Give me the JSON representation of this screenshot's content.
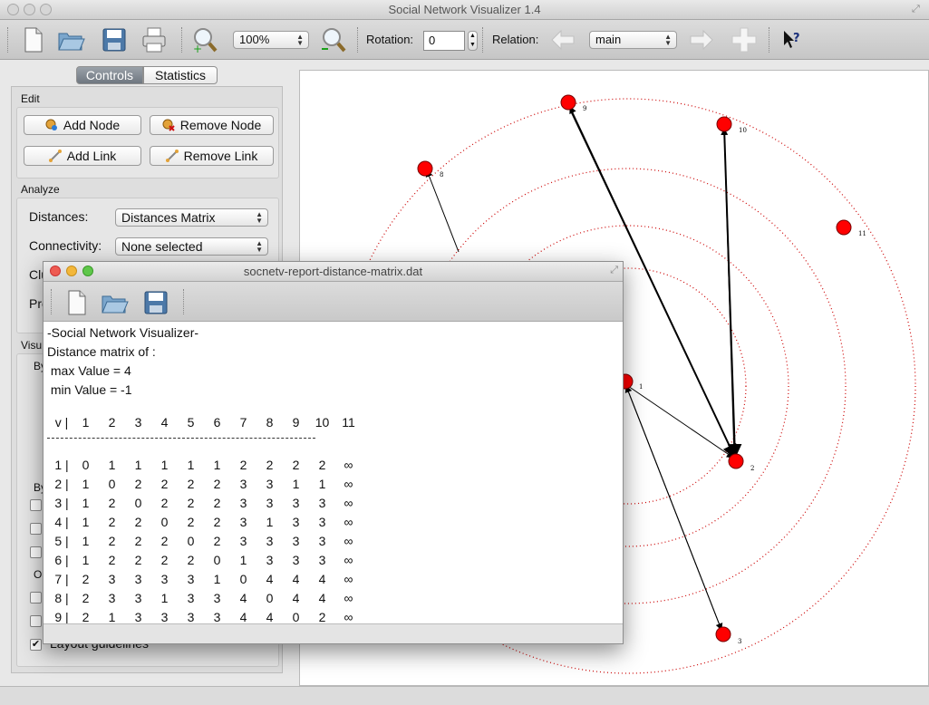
{
  "app": {
    "title": "Social Network Visualizer 1.4"
  },
  "toolbar": {
    "zoom_value": "100%",
    "rotation_label": "Rotation:",
    "rotation_value": "0",
    "relation_label": "Relation:",
    "relation_value": "main",
    "icons": [
      "new-file-icon",
      "open-folder-icon",
      "save-icon",
      "print-icon",
      "zoom-in-icon",
      "zoom-out-icon",
      "previous-relation-icon",
      "next-relation-icon",
      "add-relation-icon",
      "whats-this-icon"
    ]
  },
  "tabs": [
    "Controls",
    "Statistics"
  ],
  "controls": {
    "edit_title": "Edit",
    "add_node": "Add Node",
    "remove_node": "Remove Node",
    "add_link": "Add Link",
    "remove_link": "Remove Link",
    "analyze_title": "Analyze",
    "distances_label": "Distances:",
    "distances_value": "Distances Matrix",
    "connectivity_label": "Connectivity:",
    "connectivity_value": "None selected",
    "clustering_label_partial": "Clu",
    "prominence_label_partial": "Pro",
    "visualize_title_partial": "Visu",
    "by_partial_1": "By",
    "by_partial_2": "By",
    "options_partial": "O",
    "layout_guidelines": "Layout guidelines"
  },
  "graph": {
    "node_color": "#ff0000",
    "guide_color": "#cc0000",
    "nodes": [
      {
        "id": "1",
        "label": "1"
      },
      {
        "id": "2",
        "label": "2"
      },
      {
        "id": "3",
        "label": "3"
      },
      {
        "id": "8",
        "label": "8"
      },
      {
        "id": "9",
        "label": "9"
      },
      {
        "id": "10",
        "label": "10"
      },
      {
        "id": "11",
        "label": "11"
      }
    ]
  },
  "report": {
    "title": "socnetv-report-distance-matrix.dat",
    "lines": [
      "-Social Network Visualizer-",
      "Distance matrix of :",
      " max Value = 4",
      " min Value = -1"
    ],
    "header": [
      "v",
      "1",
      "2",
      "3",
      "4",
      "5",
      "6",
      "7",
      "8",
      "9",
      "10",
      "11"
    ],
    "rows": [
      {
        "v": "1",
        "cells": [
          "0",
          "1",
          "1",
          "1",
          "1",
          "1",
          "2",
          "2",
          "2",
          "2",
          "∞"
        ]
      },
      {
        "v": "2",
        "cells": [
          "1",
          "0",
          "2",
          "2",
          "2",
          "2",
          "3",
          "3",
          "1",
          "1",
          "∞"
        ]
      },
      {
        "v": "3",
        "cells": [
          "1",
          "2",
          "0",
          "2",
          "2",
          "2",
          "3",
          "3",
          "3",
          "3",
          "∞"
        ]
      },
      {
        "v": "4",
        "cells": [
          "1",
          "2",
          "2",
          "0",
          "2",
          "2",
          "3",
          "1",
          "3",
          "3",
          "∞"
        ]
      },
      {
        "v": "5",
        "cells": [
          "1",
          "2",
          "2",
          "2",
          "0",
          "2",
          "3",
          "3",
          "3",
          "3",
          "∞"
        ]
      },
      {
        "v": "6",
        "cells": [
          "1",
          "2",
          "2",
          "2",
          "2",
          "0",
          "1",
          "3",
          "3",
          "3",
          "∞"
        ]
      },
      {
        "v": "7",
        "cells": [
          "2",
          "3",
          "3",
          "3",
          "3",
          "1",
          "0",
          "4",
          "4",
          "4",
          "∞"
        ]
      },
      {
        "v": "8",
        "cells": [
          "2",
          "3",
          "3",
          "1",
          "3",
          "3",
          "4",
          "0",
          "4",
          "4",
          "∞"
        ]
      },
      {
        "v": "9",
        "cells": [
          "2",
          "1",
          "3",
          "3",
          "3",
          "3",
          "4",
          "4",
          "0",
          "2",
          "∞"
        ]
      }
    ]
  }
}
